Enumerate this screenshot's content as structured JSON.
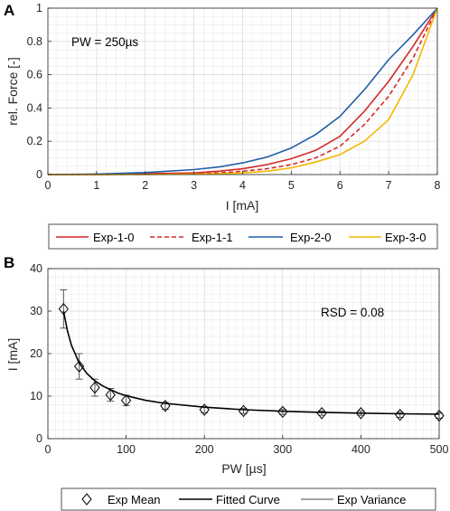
{
  "chart_data": [
    {
      "type": "line",
      "panel_label": "A",
      "annotation": "PW = 250µs",
      "xlabel": "I [mA]",
      "ylabel": "rel. Force [-]",
      "xlim": [
        0,
        8
      ],
      "ylim": [
        0,
        1
      ],
      "xticks": [
        "0",
        "1",
        "2",
        "3",
        "4",
        "5",
        "6",
        "7",
        "8"
      ],
      "yticks": [
        "0",
        "0.2",
        "0.4",
        "0.6",
        "0.8",
        "1"
      ],
      "grid": true,
      "legend_position": "bottom",
      "series": [
        {
          "name": "Exp-1-0",
          "color": "#d62728",
          "dash": "solid",
          "x": [
            0,
            1,
            2,
            3,
            3.5,
            4,
            4.5,
            5,
            5.5,
            6,
            6.5,
            7,
            7.5,
            8
          ],
          "y": [
            0,
            0,
            0.005,
            0.01,
            0.02,
            0.035,
            0.06,
            0.095,
            0.145,
            0.23,
            0.38,
            0.56,
            0.77,
            1.0
          ]
        },
        {
          "name": "Exp-1-1",
          "color": "#d62728",
          "dash": "dashed",
          "x": [
            0,
            1,
            2,
            3,
            3.5,
            4,
            4.5,
            5,
            5.5,
            6,
            6.5,
            7,
            7.5,
            8
          ],
          "y": [
            0,
            0,
            0.002,
            0.005,
            0.01,
            0.02,
            0.035,
            0.06,
            0.1,
            0.17,
            0.3,
            0.47,
            0.7,
            1.0
          ]
        },
        {
          "name": "Exp-2-0",
          "color": "#1f5fa8",
          "dash": "solid",
          "x": [
            0,
            1,
            2,
            3,
            3.5,
            4,
            4.5,
            5,
            5.5,
            6,
            6.5,
            7,
            7.5,
            8
          ],
          "y": [
            0,
            0.003,
            0.012,
            0.03,
            0.045,
            0.07,
            0.105,
            0.16,
            0.24,
            0.35,
            0.51,
            0.69,
            0.84,
            1.0
          ]
        },
        {
          "name": "Exp-3-0",
          "color": "#f2b800",
          "dash": "solid",
          "x": [
            0,
            1,
            2,
            3,
            3.5,
            4,
            4.5,
            5,
            5.5,
            6,
            6.5,
            7,
            7.5,
            8
          ],
          "y": [
            0,
            0,
            0,
            0.003,
            0.005,
            0.01,
            0.02,
            0.04,
            0.075,
            0.12,
            0.2,
            0.33,
            0.6,
            1.0
          ]
        }
      ]
    },
    {
      "type": "scatter",
      "panel_label": "B",
      "annotation": "RSD = 0.08",
      "xlabel": "PW [µs]",
      "ylabel": "I [mA]",
      "xlim": [
        0,
        500
      ],
      "ylim": [
        0,
        40
      ],
      "xticks": [
        "0",
        "100",
        "200",
        "300",
        "400",
        "500"
      ],
      "yticks": [
        "0",
        "10",
        "20",
        "30",
        "40"
      ],
      "grid": true,
      "legend_position": "bottom",
      "legend": [
        "Exp Mean",
        "Fitted Curve",
        "Exp Variance"
      ],
      "exp_mean": {
        "x": [
          20,
          40,
          60,
          80,
          100,
          150,
          200,
          250,
          300,
          350,
          400,
          450,
          500
        ],
        "y": [
          30.5,
          17,
          12,
          10.3,
          9,
          7.7,
          6.8,
          6.5,
          6.3,
          6.0,
          6.0,
          5.6,
          5.4
        ]
      },
      "exp_variance": {
        "x": [
          20,
          40,
          60,
          80,
          100,
          150,
          200,
          250,
          300,
          350,
          400,
          450,
          500
        ],
        "err": [
          4.5,
          3,
          2,
          1.5,
          1.2,
          0.8,
          0.7,
          0.6,
          0.6,
          0.5,
          0.5,
          0.6,
          0.6
        ]
      },
      "fitted_curve": {
        "x": [
          20,
          25,
          30,
          40,
          50,
          60,
          70,
          80,
          90,
          100,
          125,
          150,
          200,
          250,
          300,
          350,
          400,
          450,
          500
        ],
        "y": [
          30.0,
          25.3,
          22.0,
          17.8,
          15.3,
          13.6,
          12.4,
          11.5,
          10.7,
          10.1,
          9.0,
          8.3,
          7.4,
          6.8,
          6.45,
          6.2,
          6.0,
          5.85,
          5.75
        ]
      }
    }
  ]
}
